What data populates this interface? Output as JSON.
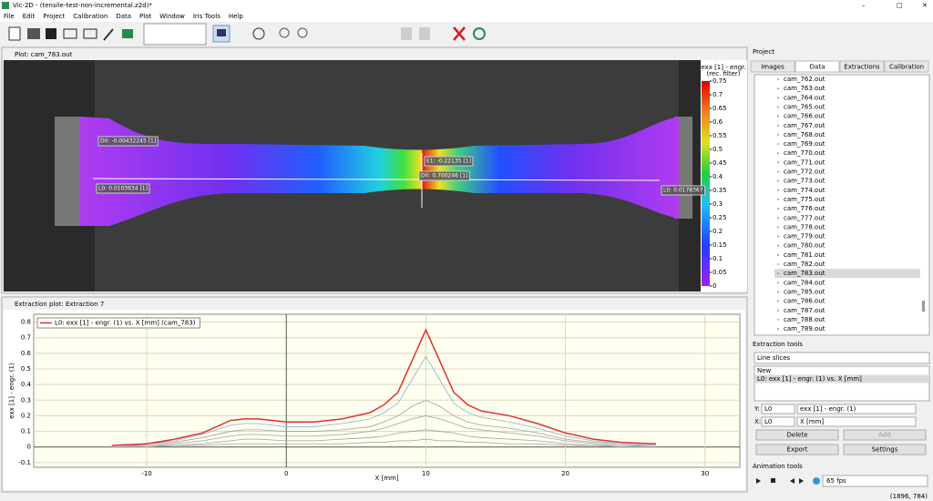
{
  "window": {
    "title": "Vic-2D - (tensile-test-non-incremental.z2d)*"
  },
  "menu": [
    "File",
    "Edit",
    "Project",
    "Calibration",
    "Data",
    "Plot",
    "Window",
    "Iris Tools",
    "Help"
  ],
  "plot_window": {
    "title": "Plot: cam_783.out",
    "colorbar": {
      "title": [
        "exx [1] - engr.",
        "(rec. filter)"
      ],
      "lim": [
        0,
        0.75
      ],
      "ticks": [
        0.75,
        0.7,
        0.65,
        0.6,
        0.55,
        0.5,
        0.45,
        0.4,
        0.35,
        0.3,
        0.25,
        0.2,
        0.15,
        0.1,
        0.05,
        0
      ]
    },
    "annotations": [
      "D0: -0.00432245 [1]",
      "E1: -0.22135 [1]",
      "D0: 0.700246 [1]",
      "L0: 0.0103634 [1]",
      "L0: 0.0178367"
    ]
  },
  "extraction_plot": {
    "title": "Extraction plot: Extraction 7",
    "chart_data": {
      "type": "line",
      "xlabel": "X [mm]",
      "ylabel": "exx [1] - engr. (1)",
      "legend": "upper left",
      "grid": true,
      "xlim": [
        -18.1,
        32.5
      ],
      "ylim": [
        -0.13,
        0.85
      ],
      "xticks": [
        -10,
        0,
        10,
        20,
        30
      ],
      "yticks": [
        -0.1,
        0,
        0.1,
        0.2,
        0.3,
        0.4,
        0.5,
        0.6,
        0.7,
        0.8
      ],
      "x": [
        -12.5,
        -10,
        -8,
        -6,
        -4,
        -3,
        -2,
        0,
        2,
        4,
        6,
        7,
        8,
        9,
        10,
        11,
        12,
        13,
        14,
        16,
        18,
        20,
        22,
        24,
        26.5
      ],
      "series": [
        {
          "name": "L0: exx [1] - engr. (1) vs. X [mm] (cam_783)",
          "color": "#e03030",
          "values": [
            0.01,
            0.02,
            0.05,
            0.09,
            0.17,
            0.18,
            0.18,
            0.16,
            0.16,
            0.18,
            0.22,
            0.27,
            0.35,
            0.55,
            0.75,
            0.55,
            0.35,
            0.27,
            0.23,
            0.2,
            0.15,
            0.09,
            0.05,
            0.03,
            0.02
          ]
        },
        {
          "color": "#8fb0d0",
          "values": [
            0.01,
            0.02,
            0.04,
            0.08,
            0.14,
            0.15,
            0.15,
            0.13,
            0.13,
            0.15,
            0.18,
            0.22,
            0.28,
            0.43,
            0.58,
            0.43,
            0.28,
            0.22,
            0.19,
            0.16,
            0.12,
            0.07,
            0.04,
            0.02,
            0.01
          ]
        },
        {
          "color": "#a0a0a0",
          "values": [
            0.01,
            0.02,
            0.03,
            0.06,
            0.1,
            0.11,
            0.11,
            0.1,
            0.1,
            0.11,
            0.13,
            0.16,
            0.2,
            0.26,
            0.3,
            0.26,
            0.2,
            0.16,
            0.14,
            0.12,
            0.09,
            0.05,
            0.03,
            0.02,
            0.01
          ]
        },
        {
          "color": "#a0a0a0",
          "values": [
            0.01,
            0.01,
            0.02,
            0.04,
            0.07,
            0.08,
            0.08,
            0.07,
            0.07,
            0.08,
            0.1,
            0.12,
            0.15,
            0.18,
            0.2,
            0.18,
            0.15,
            0.12,
            0.11,
            0.09,
            0.07,
            0.04,
            0.02,
            0.01,
            0.01
          ]
        },
        {
          "color": "#a0a0a0",
          "values": [
            0,
            0.01,
            0.01,
            0.02,
            0.04,
            0.05,
            0.05,
            0.04,
            0.04,
            0.05,
            0.06,
            0.07,
            0.09,
            0.1,
            0.11,
            0.1,
            0.09,
            0.07,
            0.06,
            0.05,
            0.04,
            0.02,
            0.01,
            0.01,
            0
          ]
        },
        {
          "color": "#a0a0a0",
          "values": [
            0,
            0,
            0.01,
            0.01,
            0.02,
            0.02,
            0.02,
            0.02,
            0.02,
            0.02,
            0.03,
            0.03,
            0.04,
            0.04,
            0.05,
            0.04,
            0.04,
            0.03,
            0.03,
            0.02,
            0.02,
            0.01,
            0.01,
            0,
            0
          ]
        }
      ]
    }
  },
  "project_panel": {
    "title": "Project",
    "tabs": [
      "Images",
      "Data",
      "Extractions",
      "Calibration"
    ],
    "active_tab": 1,
    "selected_index": 21,
    "files": [
      "cam_762.out",
      "cam_763.out",
      "cam_764.out",
      "cam_765.out",
      "cam_766.out",
      "cam_767.out",
      "cam_768.out",
      "cam_769.out",
      "cam_770.out",
      "cam_771.out",
      "cam_772.out",
      "cam_773.out",
      "cam_774.out",
      "cam_775.out",
      "cam_776.out",
      "cam_777.out",
      "cam_778.out",
      "cam_779.out",
      "cam_780.out",
      "cam_781.out",
      "cam_782.out",
      "cam_783.out",
      "cam_784.out",
      "cam_785.out",
      "cam_786.out",
      "cam_787.out",
      "cam_788.out",
      "cam_789.out"
    ]
  },
  "extraction_tools": {
    "title": "Extraction tools",
    "mode": "Line slices",
    "items": [
      "New",
      "L0: exx [1] - engr. (1) vs. X [mm]"
    ],
    "y_row": {
      "label": "Y:",
      "line": "L0",
      "var": "exx [1] - engr. (1)"
    },
    "x_row": {
      "label": "X:",
      "line": "L0",
      "var": "X [mm]"
    },
    "buttons": [
      "Delete",
      "Add",
      "Export",
      "Settings"
    ]
  },
  "animation_tools": {
    "title": "Animation tools",
    "fps": "65 fps"
  },
  "status": "(1896, 784)"
}
